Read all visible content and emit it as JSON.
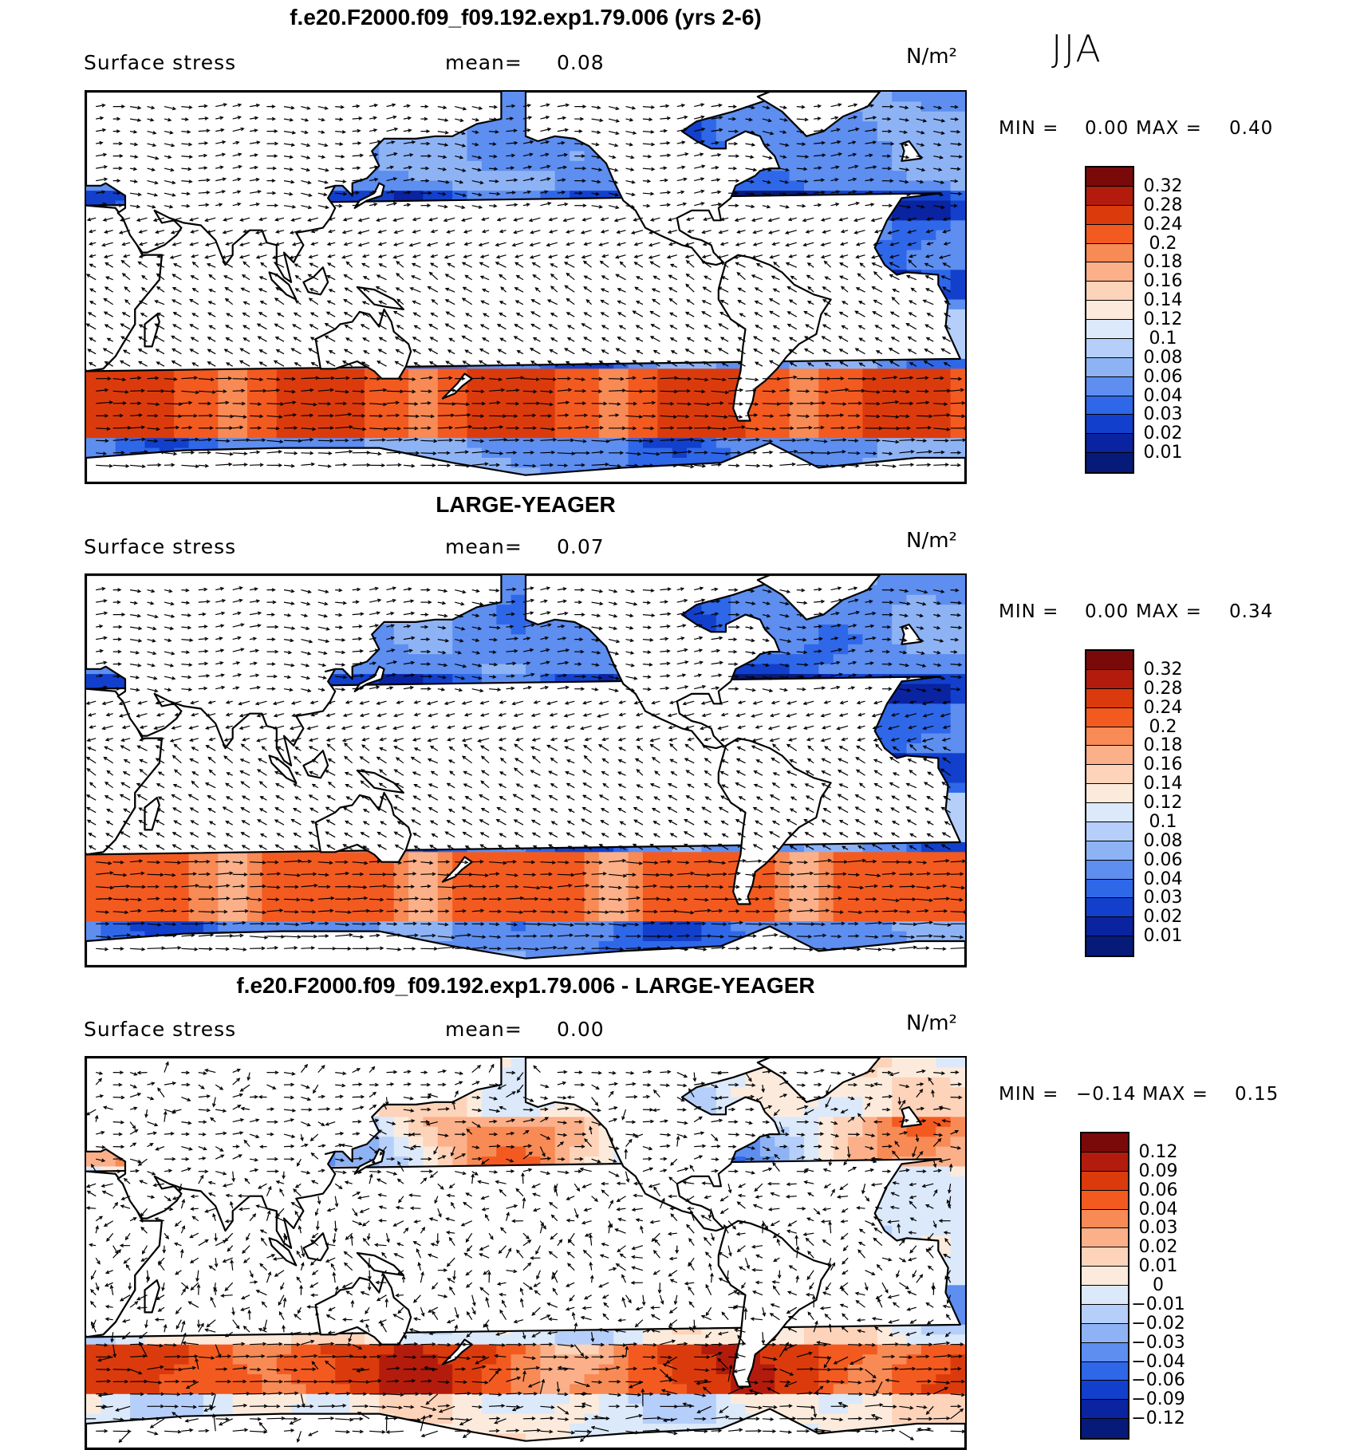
{
  "season": "JJA",
  "panels": [
    {
      "title": "f.e20.F2000.f09_f09.192.exp1.79.006 (yrs 2-6)",
      "variable": "Surface stress",
      "mean_label": "mean=",
      "mean_value": "0.08",
      "units": "N/m²",
      "min_label": "MIN =",
      "min_value": "0.00",
      "max_label": "MAX =",
      "max_value": "0.40",
      "colorbar": {
        "levels": [
          "0.32",
          "0.28",
          "0.24",
          "0.2",
          "0.18",
          "0.16",
          "0.14",
          "0.12",
          "0.1",
          "0.08",
          "0.06",
          "0.04",
          "0.03",
          "0.02",
          "0.01"
        ],
        "colors": [
          "#7a0a0a",
          "#b31c0c",
          "#db3b0c",
          "#f35a20",
          "#f88a55",
          "#fbb08a",
          "#fdd3b9",
          "#fcebdc",
          "#dbe9fa",
          "#b5cffa",
          "#8eb3f5",
          "#5d8ef0",
          "#2f67e9",
          "#1240cc",
          "#0a23a0",
          "#061a7a"
        ]
      },
      "field": "sequential"
    },
    {
      "title": "LARGE-YEAGER",
      "variable": "Surface stress",
      "mean_label": "mean=",
      "mean_value": "0.07",
      "units": "N/m²",
      "min_label": "MIN =",
      "min_value": "0.00",
      "max_label": "MAX =",
      "max_value": "0.34",
      "colorbar": {
        "levels": [
          "0.32",
          "0.28",
          "0.24",
          "0.2",
          "0.18",
          "0.16",
          "0.14",
          "0.12",
          "0.1",
          "0.08",
          "0.06",
          "0.04",
          "0.03",
          "0.02",
          "0.01"
        ],
        "colors": [
          "#7a0a0a",
          "#b31c0c",
          "#db3b0c",
          "#f35a20",
          "#f88a55",
          "#fbb08a",
          "#fdd3b9",
          "#fcebdc",
          "#dbe9fa",
          "#b5cffa",
          "#8eb3f5",
          "#5d8ef0",
          "#2f67e9",
          "#1240cc",
          "#0a23a0",
          "#061a7a"
        ]
      },
      "field": "sequential2"
    },
    {
      "title": "f.e20.F2000.f09_f09.192.exp1.79.006 - LARGE-YEAGER",
      "variable": "Surface stress",
      "mean_label": "mean=",
      "mean_value": "0.00",
      "units": "N/m²",
      "min_label": "MIN =",
      "min_value": "−0.14",
      "max_label": "MAX =",
      "max_value": "0.15",
      "colorbar": {
        "levels": [
          "0.12",
          "0.09",
          "0.06",
          "0.04",
          "0.03",
          "0.02",
          "0.01",
          "0",
          "−0.01",
          "−0.02",
          "−0.03",
          "−0.04",
          "−0.06",
          "−0.09",
          "−0.12"
        ],
        "colors": [
          "#7a0a0a",
          "#b31c0c",
          "#db3b0c",
          "#f35a20",
          "#f88a55",
          "#fbb08a",
          "#fdd3b9",
          "#fcebdc",
          "#dbe9fa",
          "#b5cffa",
          "#8eb3f5",
          "#5d8ef0",
          "#2f67e9",
          "#1240cc",
          "#0a23a0",
          "#061a7a"
        ]
      },
      "field": "diverging"
    }
  ]
}
